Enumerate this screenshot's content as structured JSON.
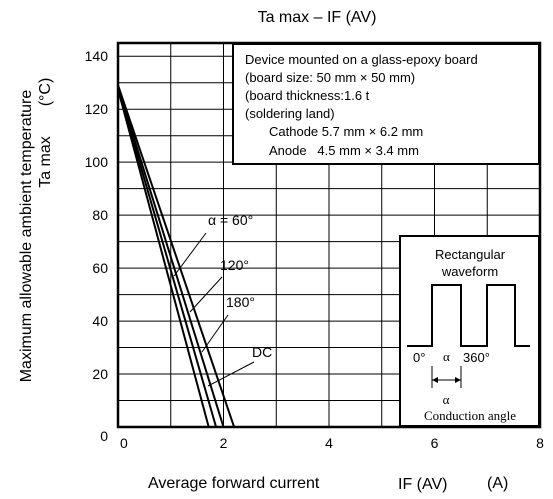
{
  "chart_data": {
    "type": "line",
    "title": "Ta max – IF (AV)",
    "xlabel": "Average forward current",
    "xlabel_symbol": "IF (AV)",
    "xlabel_unit": "(A)",
    "ylabel": "Maximum allowable ambient temperature",
    "ylabel_line2": "Ta max",
    "ylabel_unit": "(°C)",
    "xlim": [
      0,
      8
    ],
    "ylim": [
      0,
      145
    ],
    "x_ticks": [
      "0",
      "2",
      "4",
      "6",
      "8"
    ],
    "y_ticks": [
      "0",
      "20",
      "40",
      "60",
      "80",
      "100",
      "120",
      "140"
    ],
    "grid": true,
    "series": [
      {
        "name": "α = 60°",
        "points": [
          [
            -0.1,
            135
          ],
          [
            1.72,
            0
          ]
        ]
      },
      {
        "name": "120°",
        "points": [
          [
            -0.1,
            135
          ],
          [
            1.86,
            0
          ]
        ]
      },
      {
        "name": "180°",
        "points": [
          [
            -0.1,
            135
          ],
          [
            2.0,
            0
          ]
        ]
      },
      {
        "name": "DC",
        "points": [
          [
            -0.1,
            135
          ],
          [
            2.2,
            0
          ]
        ]
      }
    ],
    "annotation": {
      "lines": [
        "Device mounted on a glass-epoxy board",
        "(board size: 50 mm × 50 mm)",
        "(board thickness:1.6 t",
        "(soldering land)",
        "Cathode 5.7 mm × 6.2 mm",
        "Anode   4.5 mm × 3.4 mm"
      ]
    },
    "inset": {
      "title_line1": "Rectangular",
      "title_line2": "waveform",
      "label_0": "0°",
      "label_alpha": "α",
      "label_360": "360°",
      "label_alpha_below": "α",
      "caption": "Conduction angle"
    }
  }
}
